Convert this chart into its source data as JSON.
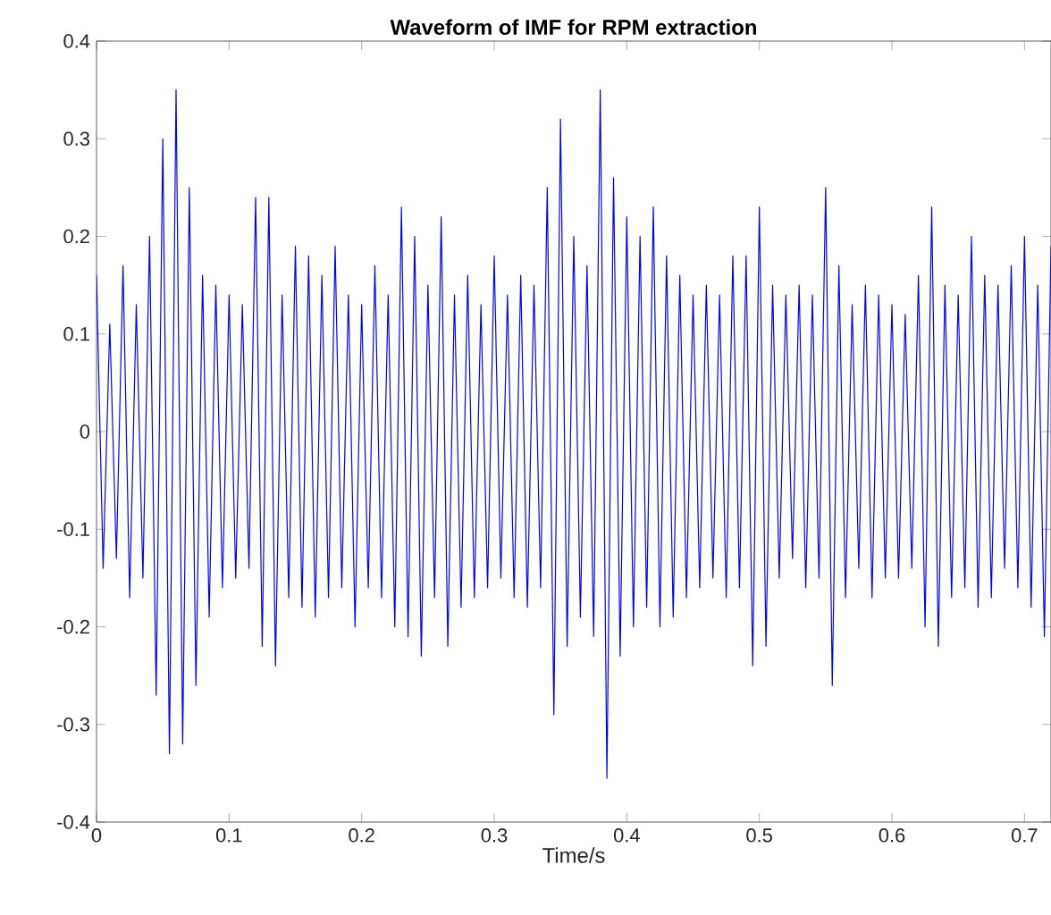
{
  "chart_data": {
    "type": "line",
    "title": "Waveform of IMF for RPM extraction",
    "xlabel": "Time/s",
    "xlim": [
      0,
      0.72
    ],
    "ylim": [
      -0.4,
      0.4
    ],
    "xticks": [
      0,
      0.1,
      0.2,
      0.3,
      0.4,
      0.5,
      0.6,
      0.7
    ],
    "yticks": [
      -0.4,
      -0.3,
      -0.2,
      -0.1,
      0,
      0.1,
      0.2,
      0.3,
      0.4
    ],
    "marker": "none",
    "line_style": "solid",
    "series": [
      {
        "color": "#0000ff",
        "x": [
          0,
          0.005,
          0.01,
          0.015,
          0.02,
          0.025,
          0.03,
          0.035,
          0.04,
          0.045,
          0.05,
          0.055,
          0.06,
          0.065,
          0.07,
          0.075,
          0.08,
          0.085,
          0.09,
          0.095,
          0.1,
          0.105,
          0.11,
          0.115,
          0.12,
          0.125,
          0.13,
          0.135,
          0.14,
          0.145,
          0.15,
          0.155,
          0.16,
          0.165,
          0.17,
          0.175,
          0.18,
          0.185,
          0.19,
          0.195,
          0.2,
          0.205,
          0.21,
          0.215,
          0.22,
          0.225,
          0.23,
          0.235,
          0.24,
          0.245,
          0.25,
          0.255,
          0.26,
          0.265,
          0.27,
          0.275,
          0.28,
          0.285,
          0.29,
          0.295,
          0.3,
          0.305,
          0.31,
          0.315,
          0.32,
          0.325,
          0.33,
          0.335,
          0.34,
          0.345,
          0.35,
          0.355,
          0.36,
          0.365,
          0.37,
          0.375,
          0.38,
          0.385,
          0.39,
          0.395,
          0.4,
          0.405,
          0.41,
          0.415,
          0.42,
          0.425,
          0.43,
          0.435,
          0.44,
          0.445,
          0.45,
          0.455,
          0.46,
          0.465,
          0.47,
          0.475,
          0.48,
          0.485,
          0.49,
          0.495,
          0.5,
          0.505,
          0.51,
          0.515,
          0.52,
          0.525,
          0.53,
          0.535,
          0.54,
          0.545,
          0.55,
          0.555,
          0.56,
          0.565,
          0.57,
          0.575,
          0.58,
          0.585,
          0.59,
          0.595,
          0.6,
          0.605,
          0.61,
          0.615,
          0.62,
          0.625,
          0.63,
          0.635,
          0.64,
          0.645,
          0.65,
          0.655,
          0.66,
          0.665,
          0.67,
          0.675,
          0.68,
          0.685,
          0.69,
          0.695,
          0.7,
          0.705,
          0.71,
          0.715,
          0.72
        ],
        "values": [
          0.16,
          -0.14,
          0.11,
          -0.13,
          0.17,
          -0.17,
          0.13,
          -0.15,
          0.2,
          -0.27,
          0.3,
          -0.33,
          0.35,
          -0.32,
          0.25,
          -0.26,
          0.16,
          -0.19,
          0.15,
          -0.16,
          0.14,
          -0.15,
          0.13,
          -0.14,
          0.24,
          -0.22,
          0.24,
          -0.24,
          0.14,
          -0.17,
          0.19,
          -0.18,
          0.18,
          -0.19,
          0.16,
          -0.17,
          0.19,
          -0.16,
          0.14,
          -0.2,
          0.13,
          -0.16,
          0.17,
          -0.17,
          0.14,
          -0.2,
          0.23,
          -0.21,
          0.2,
          -0.23,
          0.15,
          -0.17,
          0.22,
          -0.22,
          0.14,
          -0.18,
          0.16,
          -0.17,
          0.13,
          -0.16,
          0.18,
          -0.15,
          0.14,
          -0.17,
          0.16,
          -0.18,
          0.15,
          -0.16,
          0.25,
          -0.29,
          0.32,
          -0.22,
          0.2,
          -0.19,
          0.17,
          -0.21,
          0.35,
          -0.355,
          0.26,
          -0.23,
          0.22,
          -0.2,
          0.2,
          -0.18,
          0.23,
          -0.2,
          0.18,
          -0.19,
          0.16,
          -0.17,
          0.14,
          -0.16,
          0.15,
          -0.15,
          0.14,
          -0.17,
          0.18,
          -0.16,
          0.18,
          -0.24,
          0.23,
          -0.22,
          0.15,
          -0.15,
          0.14,
          -0.13,
          0.15,
          -0.16,
          0.14,
          -0.15,
          0.25,
          -0.26,
          0.17,
          -0.17,
          0.13,
          -0.14,
          0.15,
          -0.17,
          0.14,
          -0.15,
          0.13,
          -0.15,
          0.12,
          -0.14,
          0.16,
          -0.2,
          0.23,
          -0.22,
          0.15,
          -0.17,
          0.14,
          -0.16,
          0.2,
          -0.18,
          0.16,
          -0.17,
          0.15,
          -0.14,
          0.17,
          -0.16,
          0.2,
          -0.18,
          0.15,
          -0.21,
          0.19
        ]
      }
    ]
  }
}
